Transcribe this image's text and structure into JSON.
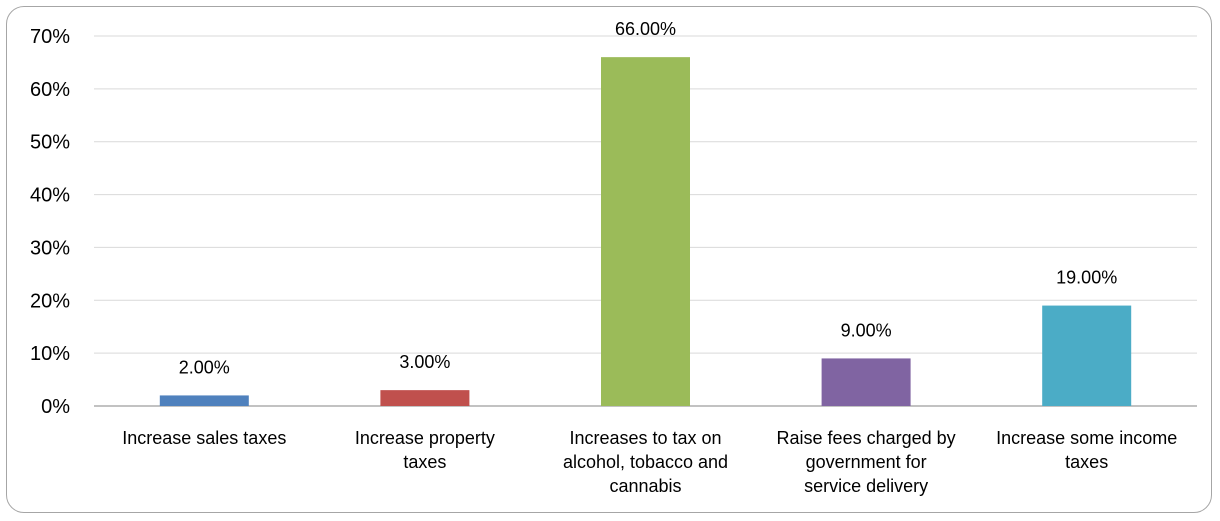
{
  "chart_data": {
    "type": "bar",
    "title": "",
    "xlabel": "",
    "ylabel": "",
    "ylim": [
      0,
      70
    ],
    "yticks": [
      "0%",
      "10%",
      "20%",
      "30%",
      "40%",
      "50%",
      "60%",
      "70%"
    ],
    "grid": true,
    "legend": "none",
    "categories": [
      [
        "Increase sales taxes"
      ],
      [
        "Increase property",
        "taxes"
      ],
      [
        "Increases to tax on",
        "alcohol, tobacco and",
        "cannabis"
      ],
      [
        "Raise fees charged by",
        "government for",
        "service delivery"
      ],
      [
        "Increase some income",
        "taxes"
      ]
    ],
    "values": [
      2,
      3,
      66,
      9,
      19
    ],
    "data_labels": [
      "2.00%",
      "3.00%",
      "66.00%",
      "9.00%",
      "19.00%"
    ],
    "colors": [
      "#4f81bd",
      "#c0504d",
      "#9bbb59",
      "#8064a2",
      "#4bacc6"
    ]
  }
}
